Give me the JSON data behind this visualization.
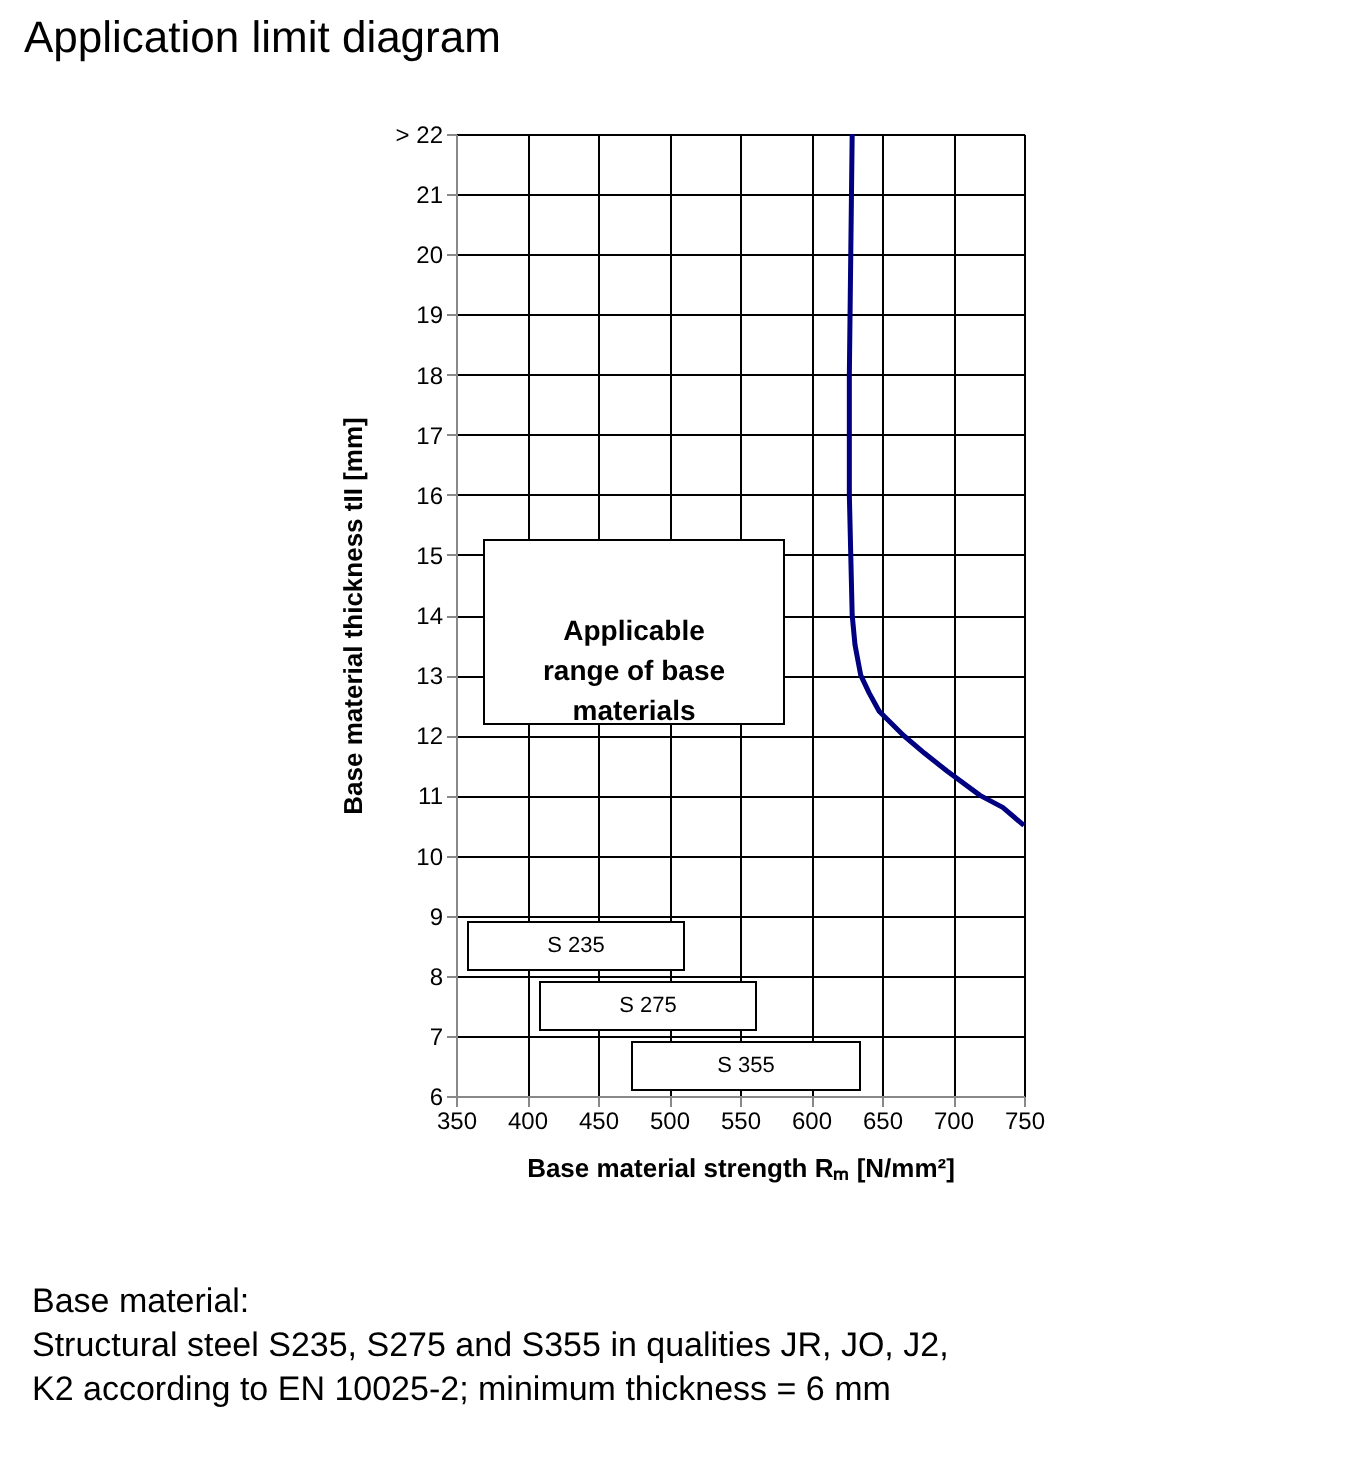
{
  "chart_data": {
    "type": "line",
    "title": "Application limit diagram",
    "xlabel": "Base material strength Rₘ [N/mm²]",
    "ylabel": "Base material thickness tII [mm]",
    "x": [
      629,
      628,
      627,
      627,
      628,
      629,
      631,
      635,
      641,
      648,
      665,
      680,
      696,
      719,
      735,
      750
    ],
    "series": [
      {
        "color": "#000080",
        "values": [
          22,
          20,
          18,
          16,
          15,
          14,
          13.5,
          13,
          12.7,
          12.4,
          12,
          11.7,
          11.4,
          11,
          10.8,
          10.5
        ]
      }
    ],
    "xlim": [
      350,
      750
    ],
    "xticks": [
      350,
      400,
      450,
      500,
      550,
      600,
      650,
      700,
      750
    ],
    "ylim": [
      6,
      22
    ],
    "yticks": [
      6,
      7,
      8,
      9,
      10,
      11,
      12,
      13,
      14,
      15,
      16,
      17,
      18,
      19,
      20,
      21,
      {
        "value": 22,
        "label": "> 22"
      }
    ],
    "grid": true,
    "marker": "none",
    "line_style": "solid",
    "annotations": [
      "Applicable\nrange of base\nmaterials",
      "S 235",
      "S 275",
      "S 355",
      "Base material:\nStructural steel S235, S275 and S355 in qualities JR, JO, J2,\nK2 according to EN 10025-2; minimum thickness = 6 mm"
    ]
  }
}
